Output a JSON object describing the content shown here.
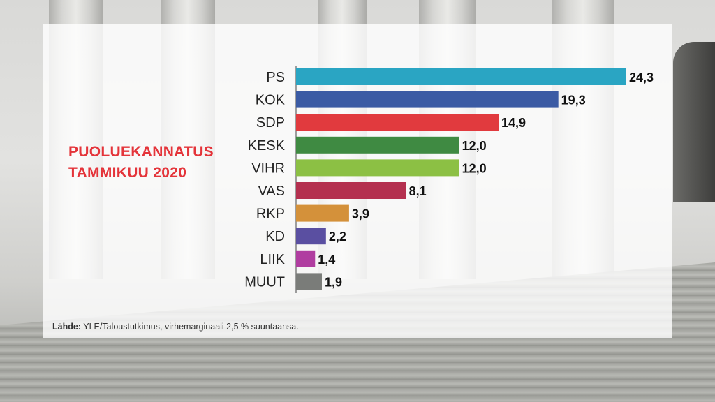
{
  "title_line1": "PUOLUEKANNATUS",
  "title_line2": "TAMMIKUU 2020",
  "source_label": "Lähde:",
  "source_text": "YLE/Taloustutkimus, virhemarginaali 2,5 % suuntaansa.",
  "chart_data": {
    "type": "bar",
    "orientation": "horizontal",
    "categories": [
      "PS",
      "KOK",
      "SDP",
      "KESK",
      "VIHR",
      "VAS",
      "RKP",
      "KD",
      "LIIK",
      "MUUT"
    ],
    "values": [
      24.3,
      19.3,
      14.9,
      12.0,
      12.0,
      8.1,
      3.9,
      2.2,
      1.4,
      1.9
    ],
    "value_labels": [
      "24,3",
      "19,3",
      "14,9",
      "12,0",
      "12,0",
      "8,1",
      "3,9",
      "2,2",
      "1,4",
      "1,9"
    ],
    "colors": [
      "#2aa5c3",
      "#3b5ba4",
      "#e13a3e",
      "#3f8a42",
      "#8cc044",
      "#b4304f",
      "#d4913a",
      "#5a4fa1",
      "#b03da0",
      "#7a7c79"
    ],
    "title": "PUOLUEKANNATUS TAMMIKUU 2020",
    "xlim": [
      0,
      24.3
    ],
    "grid": false,
    "legend": "none"
  }
}
